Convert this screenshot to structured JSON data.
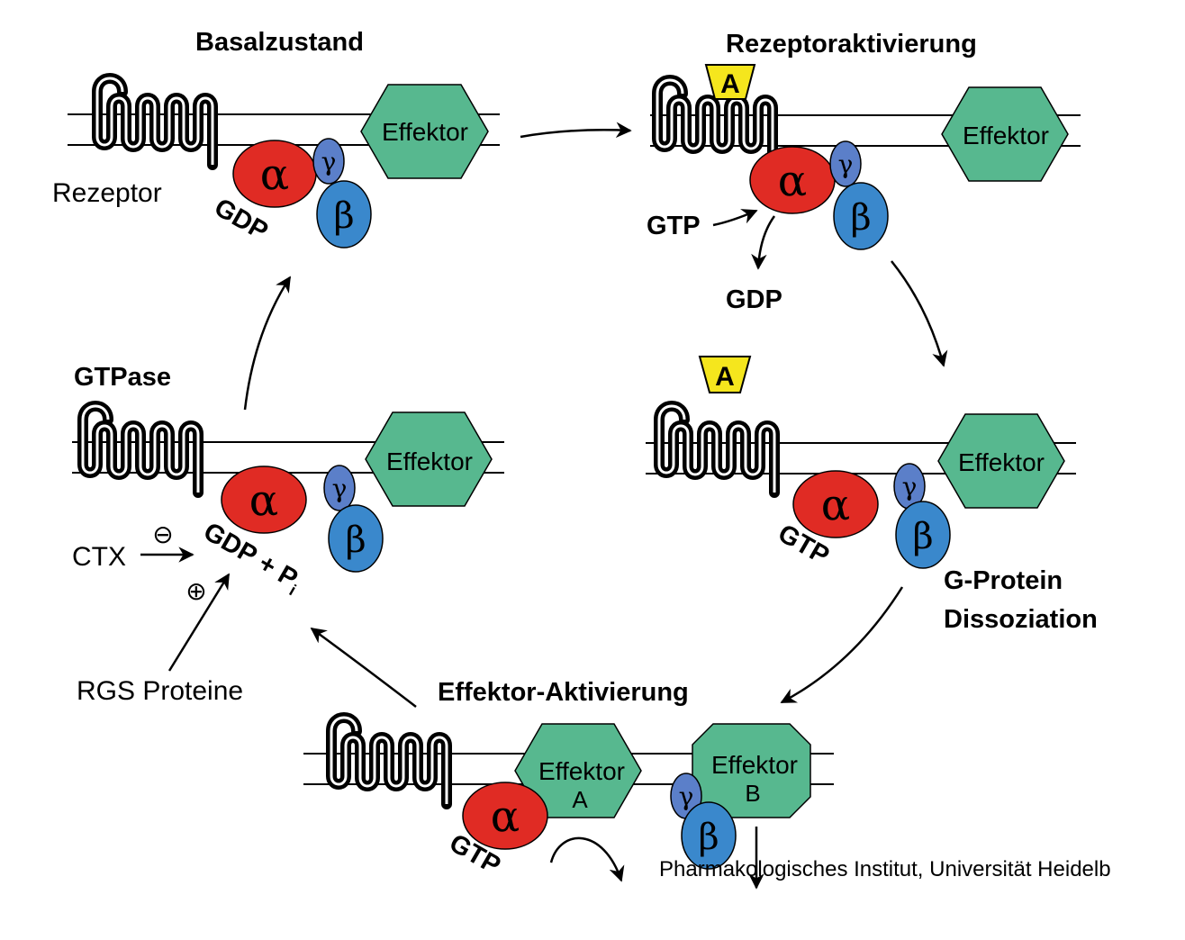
{
  "colors": {
    "effector": "#57b88f",
    "alpha": "#e02b24",
    "beta": "#3a88cc",
    "gamma": "#5b7fc9",
    "agonist": "#f5e61d"
  },
  "symbols": {
    "alpha": "α",
    "beta": "β",
    "gamma": "γ",
    "agonist": "A",
    "minus": "⊖",
    "plus": "⊕"
  },
  "stages": {
    "basal": {
      "title": "Basalzustand",
      "receptor_label": "Rezeptor",
      "effector": "Effektor",
      "nucleotide": "GDP"
    },
    "activation": {
      "title": "Rezeptoraktivierung",
      "effector": "Effektor",
      "gtp_in": "GTP",
      "gdp_out": "GDP"
    },
    "dissociation": {
      "title_line1": "G-Protein",
      "title_line2": "Dissoziation",
      "effector": "Effektor",
      "nucleotide": "GTP"
    },
    "effector_activation": {
      "title": "Effektor-Aktivierung",
      "effector_a_line1": "Effektor",
      "effector_a_line2": "A",
      "effector_b_line1": "Effektor",
      "effector_b_line2": "B",
      "nucleotide": "GTP"
    },
    "gtpase": {
      "title": "GTPase",
      "effector": "Effektor",
      "product": "GDP + P",
      "product_subscript": "i",
      "inhibitor": "CTX",
      "activator": "RGS Proteine"
    }
  },
  "credit": "Pharmakologisches Institut, Universität Heidelb"
}
